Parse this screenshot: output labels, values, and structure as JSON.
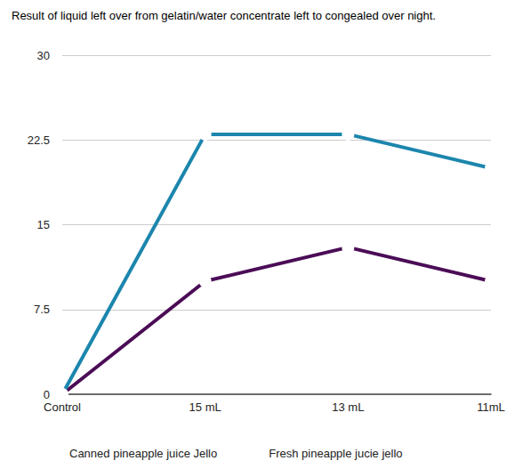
{
  "chart_data": {
    "type": "line",
    "title": "Result of liquid left over from gelatin/water concentrate left to congealed over night.",
    "categories": [
      "Control",
      "15 mL",
      "13 mL",
      "11mL"
    ],
    "series": [
      {
        "name": "Canned pineapple juice Jello",
        "color": "#4b0c56",
        "values": [
          0,
          10,
          13,
          10
        ]
      },
      {
        "name": "Fresh pineapple jucie jello",
        "color": "#1c86ad",
        "values": [
          0,
          23,
          23,
          20
        ]
      }
    ],
    "ylim": [
      0,
      30
    ],
    "yticks": [
      0,
      7.5,
      15,
      22.5,
      30
    ],
    "grid": true,
    "legend": "bottom-left",
    "marker": "circle"
  }
}
